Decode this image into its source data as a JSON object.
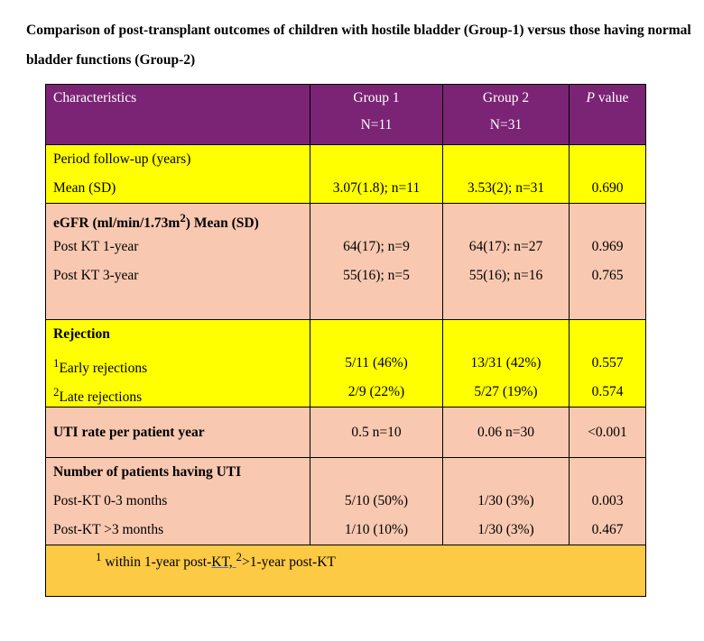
{
  "title": "Comparison of post-transplant outcomes of children with hostile bladder (Group-1) versus those having normal bladder functions (Group-2)",
  "header": {
    "characteristics": "Characteristics",
    "group1": "Group 1",
    "group1_n": "N=11",
    "group2": "Group 2",
    "group2_n": "N=31",
    "p_italic": "P",
    "p_rest": " value"
  },
  "followup": {
    "label": "Period follow-up (years)",
    "row_label": "Mean (SD)",
    "g1": "3.07(1.8); n=11",
    "g2": "3.53(2); n=31",
    "p": "0.690"
  },
  "egfr": {
    "label_pre": "eGFR (ml/min/1.73m",
    "label_sup": "2",
    "label_post": ") Mean (SD)",
    "rows": [
      {
        "label": "Post KT 1-year",
        "g1": "64(17); n=9",
        "g2": "64(17): n=27",
        "p": "0.969"
      },
      {
        "label": "Post KT 3-year",
        "g1": "55(16); n=5",
        "g2": "55(16); n=16",
        "p": "0.765"
      }
    ]
  },
  "rejection": {
    "label": "Rejection",
    "rows": [
      {
        "sup": "1",
        "label": "Early rejections",
        "g1": "5/11 (46%)",
        "g2": "13/31 (42%)",
        "p": "0.557"
      },
      {
        "sup": "2",
        "label": "Late rejections",
        "g1": "2/9 (22%)",
        "g2": "5/27 (19%)",
        "p": "0.574"
      }
    ]
  },
  "uti_rate": {
    "label": "UTI rate per patient year",
    "g1": "0.5 n=10",
    "g2": "0.06 n=30",
    "p": "<0.001"
  },
  "uti_patients": {
    "label": "Number of patients having UTI",
    "rows": [
      {
        "label": "Post-KT 0-3 months",
        "g1": "5/10 (50%)",
        "g2": "1/30 (3%)",
        "p": "0.003"
      },
      {
        "label": "Post-KT >3 months",
        "g1": "1/10 (10%)",
        "g2": "1/30 (3%)",
        "p": "0.467"
      }
    ]
  },
  "footnote": {
    "sup1": "1",
    "text1": " within 1-year post-",
    "text1_underlined": "KT, ",
    "sup2": "2",
    "text2": ">1-year post-KT"
  },
  "colors": {
    "header_bg": "#7b2374",
    "yellow_bg": "#ffff00",
    "peach_bg": "#f8c8b0",
    "footer_bg": "#fcca44"
  }
}
